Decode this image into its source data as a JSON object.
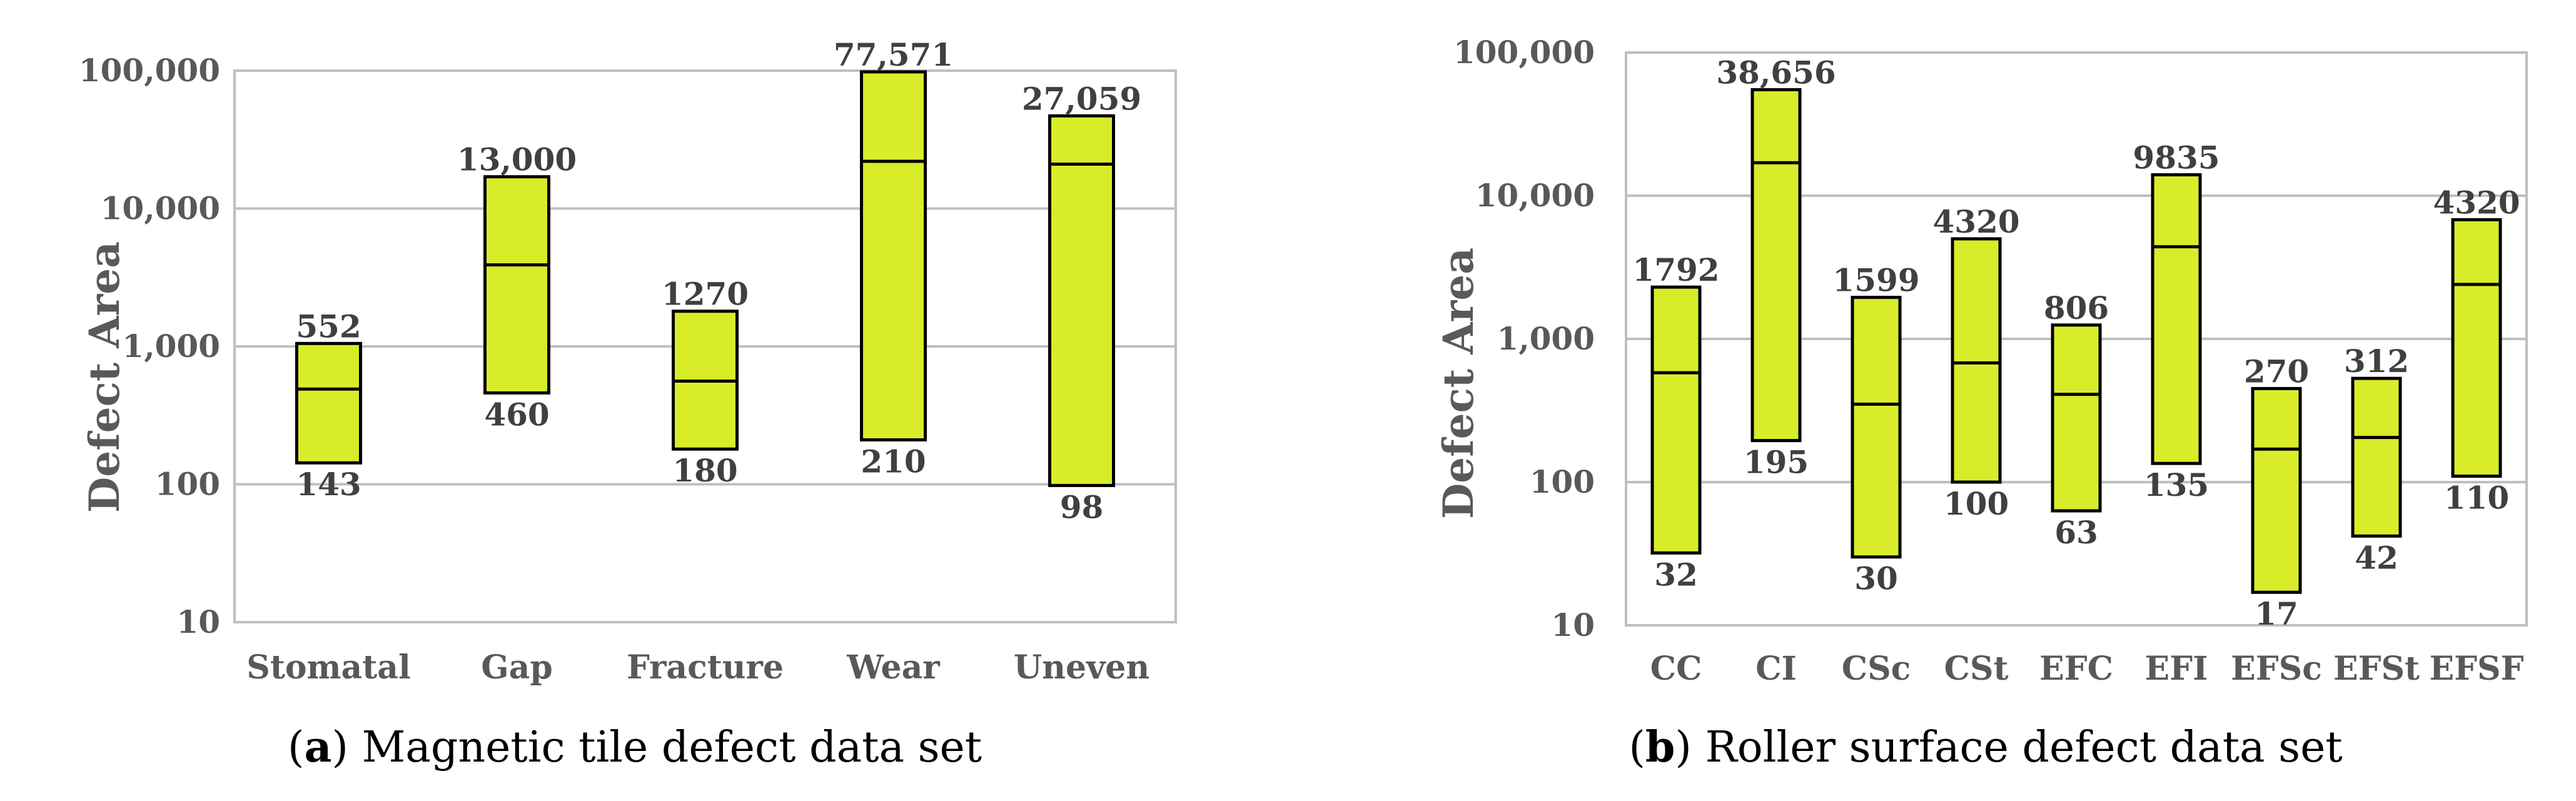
{
  "colors": {
    "bar_fill": "#d9ec2a",
    "bar_stroke": "#000000",
    "grid": "#bfbfbf",
    "axis_text": "#595959",
    "label_text": "#404040"
  },
  "chart_data": [
    {
      "type": "bar",
      "subtype": "floating-range",
      "caption_letter": "a",
      "caption_text": "Magnetic tile defect data set",
      "ylabel": "Defect Area",
      "yscale": "log",
      "ylim": [
        10,
        100000
      ],
      "yticks": [
        "10",
        "100",
        "1,000",
        "10,000",
        "100,000"
      ],
      "grid": true,
      "categories": [
        "Stomatal",
        "Gap",
        "Fracture",
        "Wear",
        "Uneven"
      ],
      "series": [
        {
          "low": [
            143,
            460,
            180,
            210,
            98
          ],
          "high": [
            1050,
            17000,
            1800,
            98000,
            47000
          ],
          "mid": [
            490,
            3900,
            560,
            22000,
            21000
          ]
        }
      ],
      "annotations": {
        "top": [
          "552",
          "13,000",
          "1270",
          "77,571",
          "27,059"
        ],
        "bottom": [
          "143",
          "460",
          "180",
          "210",
          "98"
        ]
      }
    },
    {
      "type": "bar",
      "subtype": "floating-range",
      "caption_letter": "b",
      "caption_text": "Roller surface defect data set",
      "ylabel": "Defect Area",
      "yscale": "log",
      "ylim": [
        10,
        100000
      ],
      "yticks": [
        "10",
        "100",
        "1,000",
        "10,000",
        "100,000"
      ],
      "grid": true,
      "categories": [
        "CC",
        "CI",
        "CSc",
        "CSt",
        "EFC",
        "EFI",
        "EFSc",
        "EFSt",
        "EFSF"
      ],
      "series": [
        {
          "low": [
            32,
            195,
            30,
            100,
            63,
            135,
            17,
            42,
            110
          ],
          "high": [
            2300,
            55000,
            1950,
            5000,
            1250,
            14000,
            450,
            530,
            6800
          ],
          "mid": [
            580,
            17000,
            350,
            680,
            410,
            4400,
            170,
            205,
            2400
          ]
        }
      ],
      "annotations": {
        "top": [
          "1792",
          "38,656",
          "1599",
          "4320",
          "806",
          "9835",
          "270",
          "312",
          "4320"
        ],
        "bottom": [
          "32",
          "195",
          "30",
          "100",
          "63",
          "135",
          "17",
          "42",
          "110"
        ]
      }
    }
  ]
}
